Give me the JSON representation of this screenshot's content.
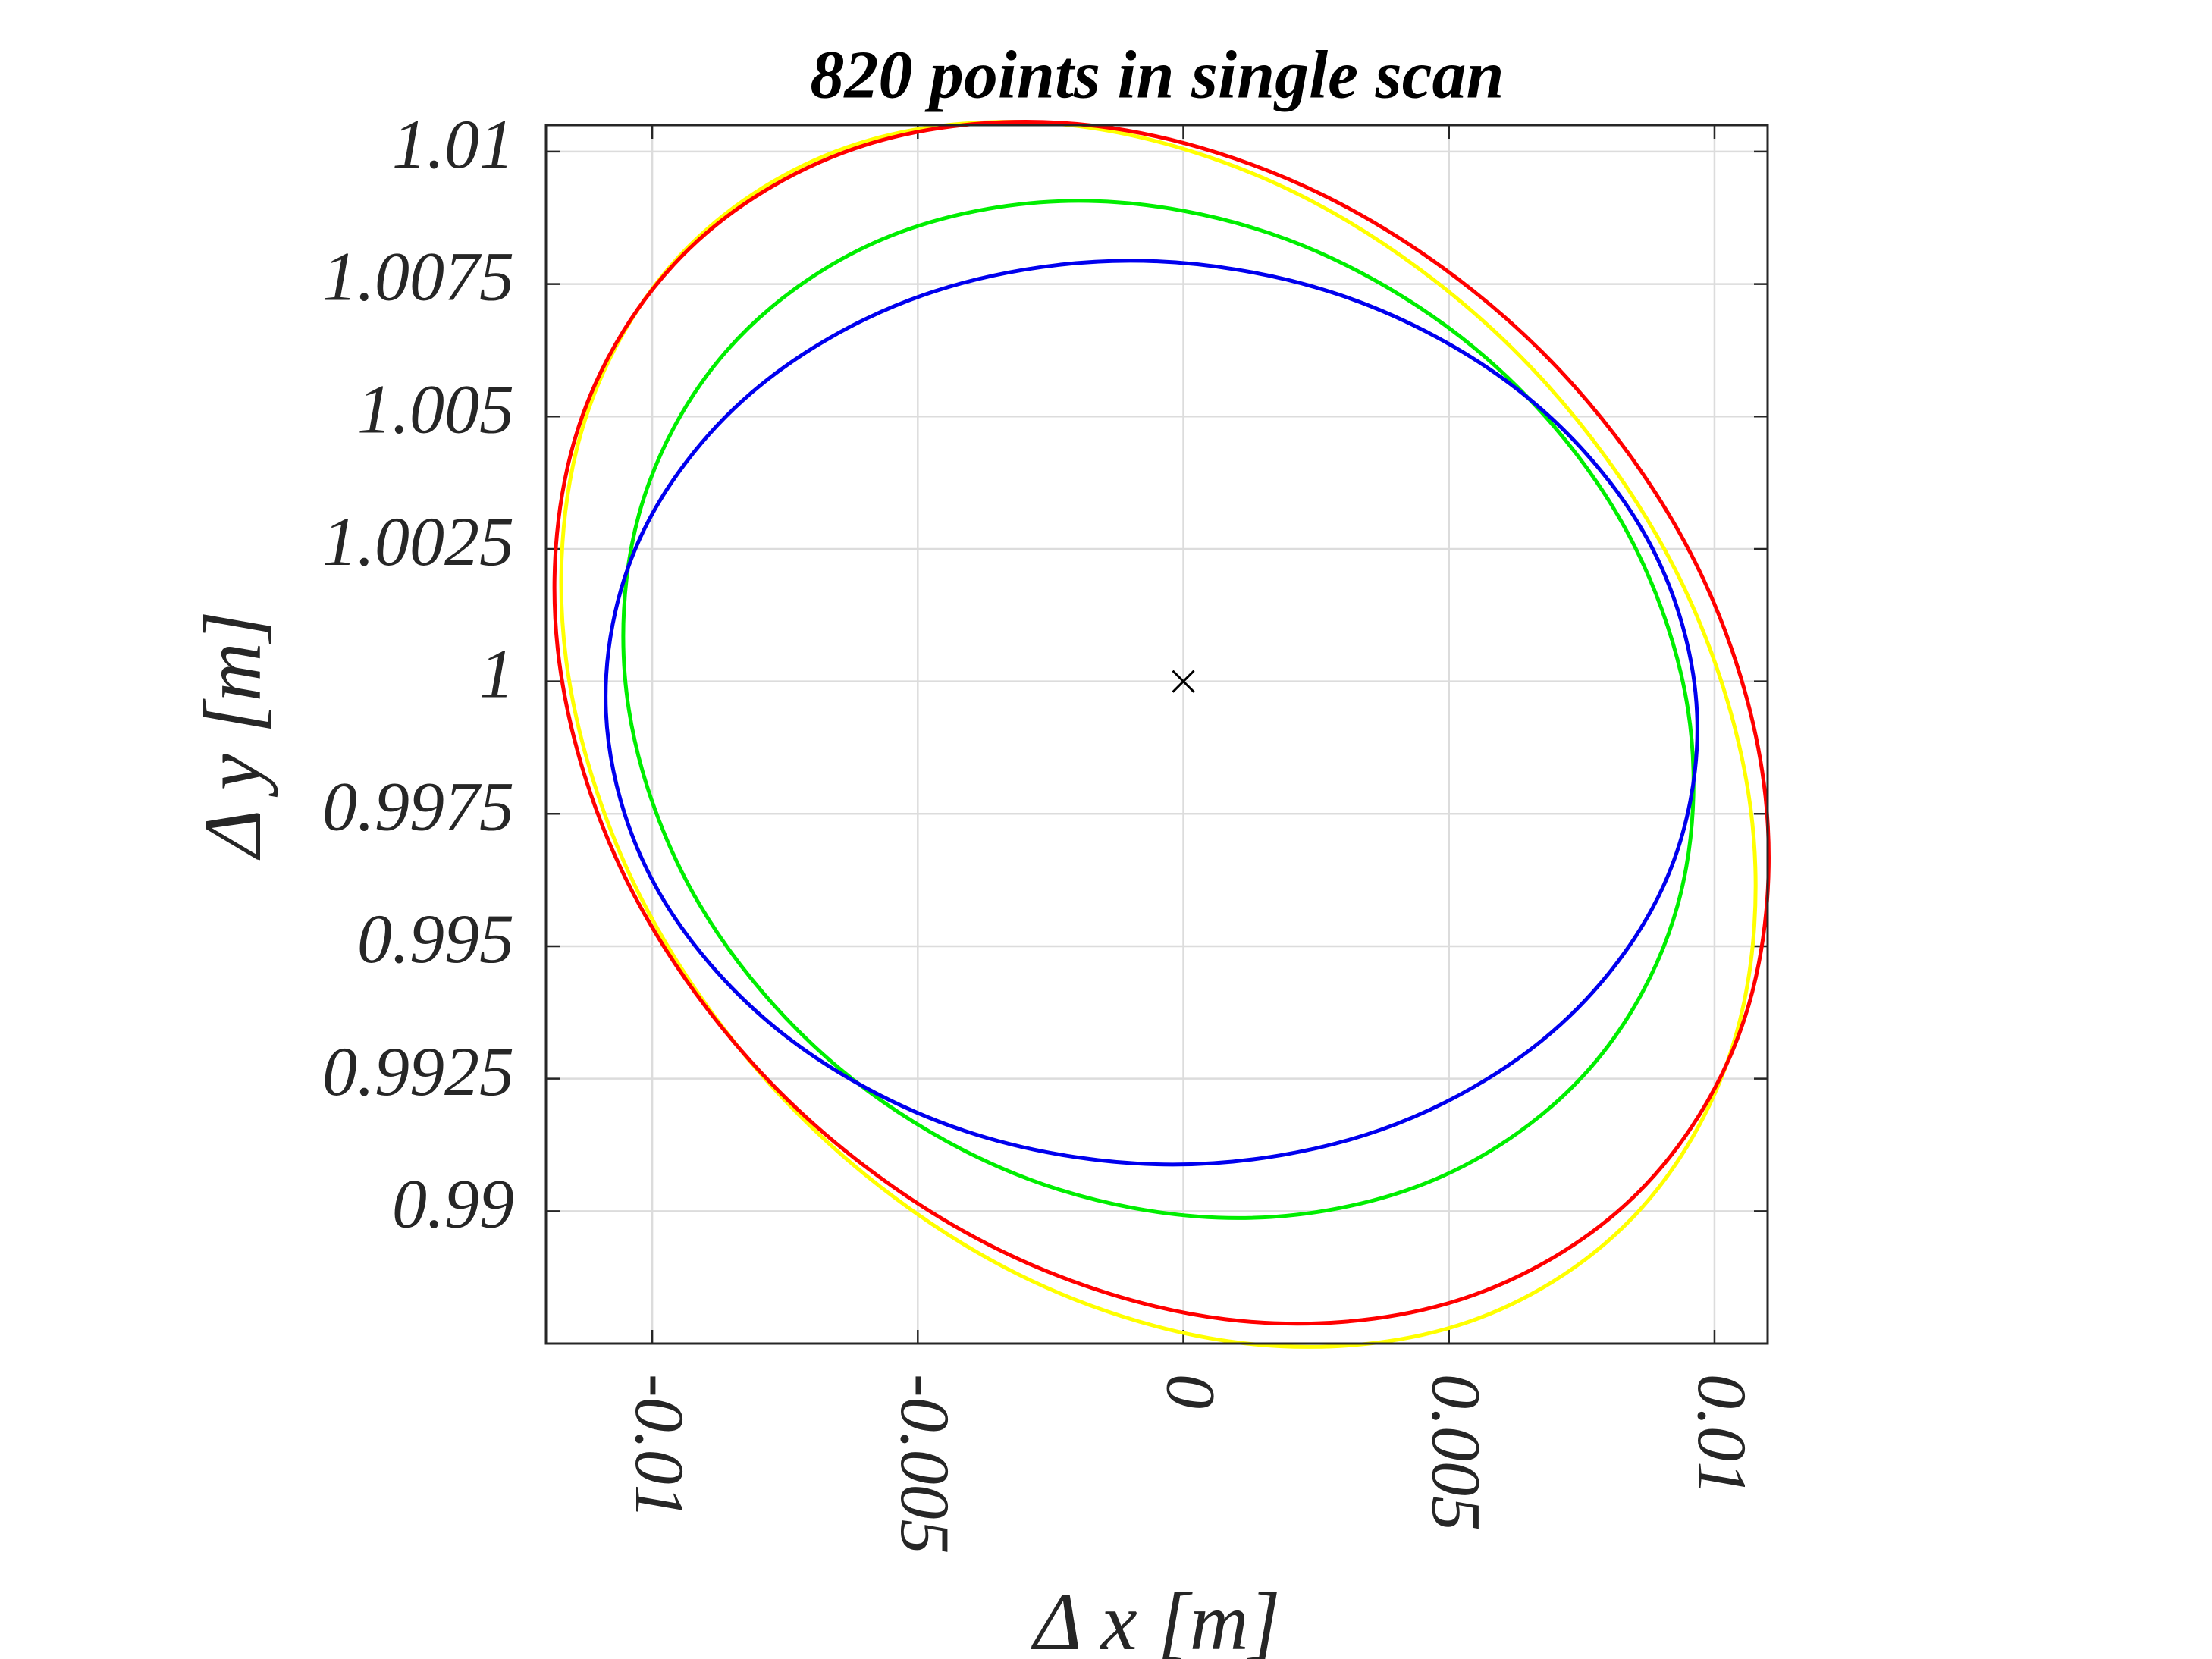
{
  "chart_data": {
    "type": "line",
    "title": "820 points in single scan",
    "x_label": "Δ x [m]",
    "y_label": "Δ y [m]",
    "xlim": [
      -0.012,
      0.011
    ],
    "ylim": [
      0.9875,
      1.0105
    ],
    "xticks": [
      -0.01,
      -0.005,
      0,
      0.005,
      0.01
    ],
    "yticks": [
      0.99,
      0.9925,
      0.995,
      0.9975,
      1,
      1.0025,
      1.005,
      1.0075,
      1.01
    ],
    "grid": true,
    "closed": true,
    "series": [
      {
        "color": "#ffff00",
        "x": [
          0.01068,
          0.00926,
          0.00635,
          0.00241,
          -0.00197,
          -0.00613,
          -0.00941,
          -0.01134,
          -0.01162,
          -0.0102,
          -0.00729,
          -0.00335,
          0.00103,
          0.00519,
          0.00847,
          0.0104
        ],
        "values": [
          0.9976,
          1.00211,
          1.00613,
          1.00907,
          1.01048,
          1.01015,
          1.00811,
          1.00469,
          1.0004,
          0.99589,
          0.99187,
          0.98893,
          0.98752,
          0.98785,
          0.98989,
          0.99331
        ]
      },
      {
        "color": "#ff0000",
        "x": [
          0.01096,
          0.00964,
          0.00678,
          0.00283,
          -0.00161,
          -0.00587,
          -0.0093,
          -0.01138,
          -0.01178,
          -0.01046,
          -0.0076,
          -0.00365,
          0.00079,
          0.00505,
          0.00848,
          0.01056
        ],
        "values": [
          0.99782,
          1.00224,
          1.00619,
          1.00908,
          1.01048,
          1.01016,
          1.00817,
          1.00482,
          1.00062,
          0.9962,
          0.99225,
          0.98936,
          0.98796,
          0.98828,
          0.99027,
          0.99362
        ]
      },
      {
        "color": "#00ee00",
        "x": [
          0.0095,
          0.00817,
          0.00552,
          0.00196,
          -0.00197,
          -0.00568,
          -0.00858,
          -0.01025,
          -0.01044,
          -0.00911,
          -0.00646,
          -0.0029,
          0.00103,
          0.00474,
          0.00764,
          0.00931
        ],
        "values": [
          0.99947,
          1.00315,
          1.00626,
          1.00834,
          1.00907,
          1.00834,
          1.00626,
          1.00315,
          0.99947,
          0.99579,
          0.99268,
          0.9906,
          0.98987,
          0.9906,
          0.99268,
          0.99579
        ]
      },
      {
        "color": "#0000ee",
        "x": [
          0.00967,
          0.00874,
          0.00638,
          0.00296,
          -0.001,
          -0.0049,
          -0.00814,
          -0.01024,
          -0.01087,
          -0.00994,
          -0.00758,
          -0.00416,
          -0.0002,
          0.0037,
          0.00694,
          0.00904
        ],
        "values": [
          0.99941,
          1.00268,
          1.00544,
          1.00729,
          1.00794,
          1.00729,
          1.00544,
          1.00268,
          0.99941,
          0.99614,
          0.99338,
          0.99153,
          0.99088,
          0.99153,
          0.99338,
          0.99614
        ]
      }
    ],
    "markers": {
      "color": "#000000",
      "x": [
        0
      ],
      "values": [
        1
      ]
    }
  }
}
